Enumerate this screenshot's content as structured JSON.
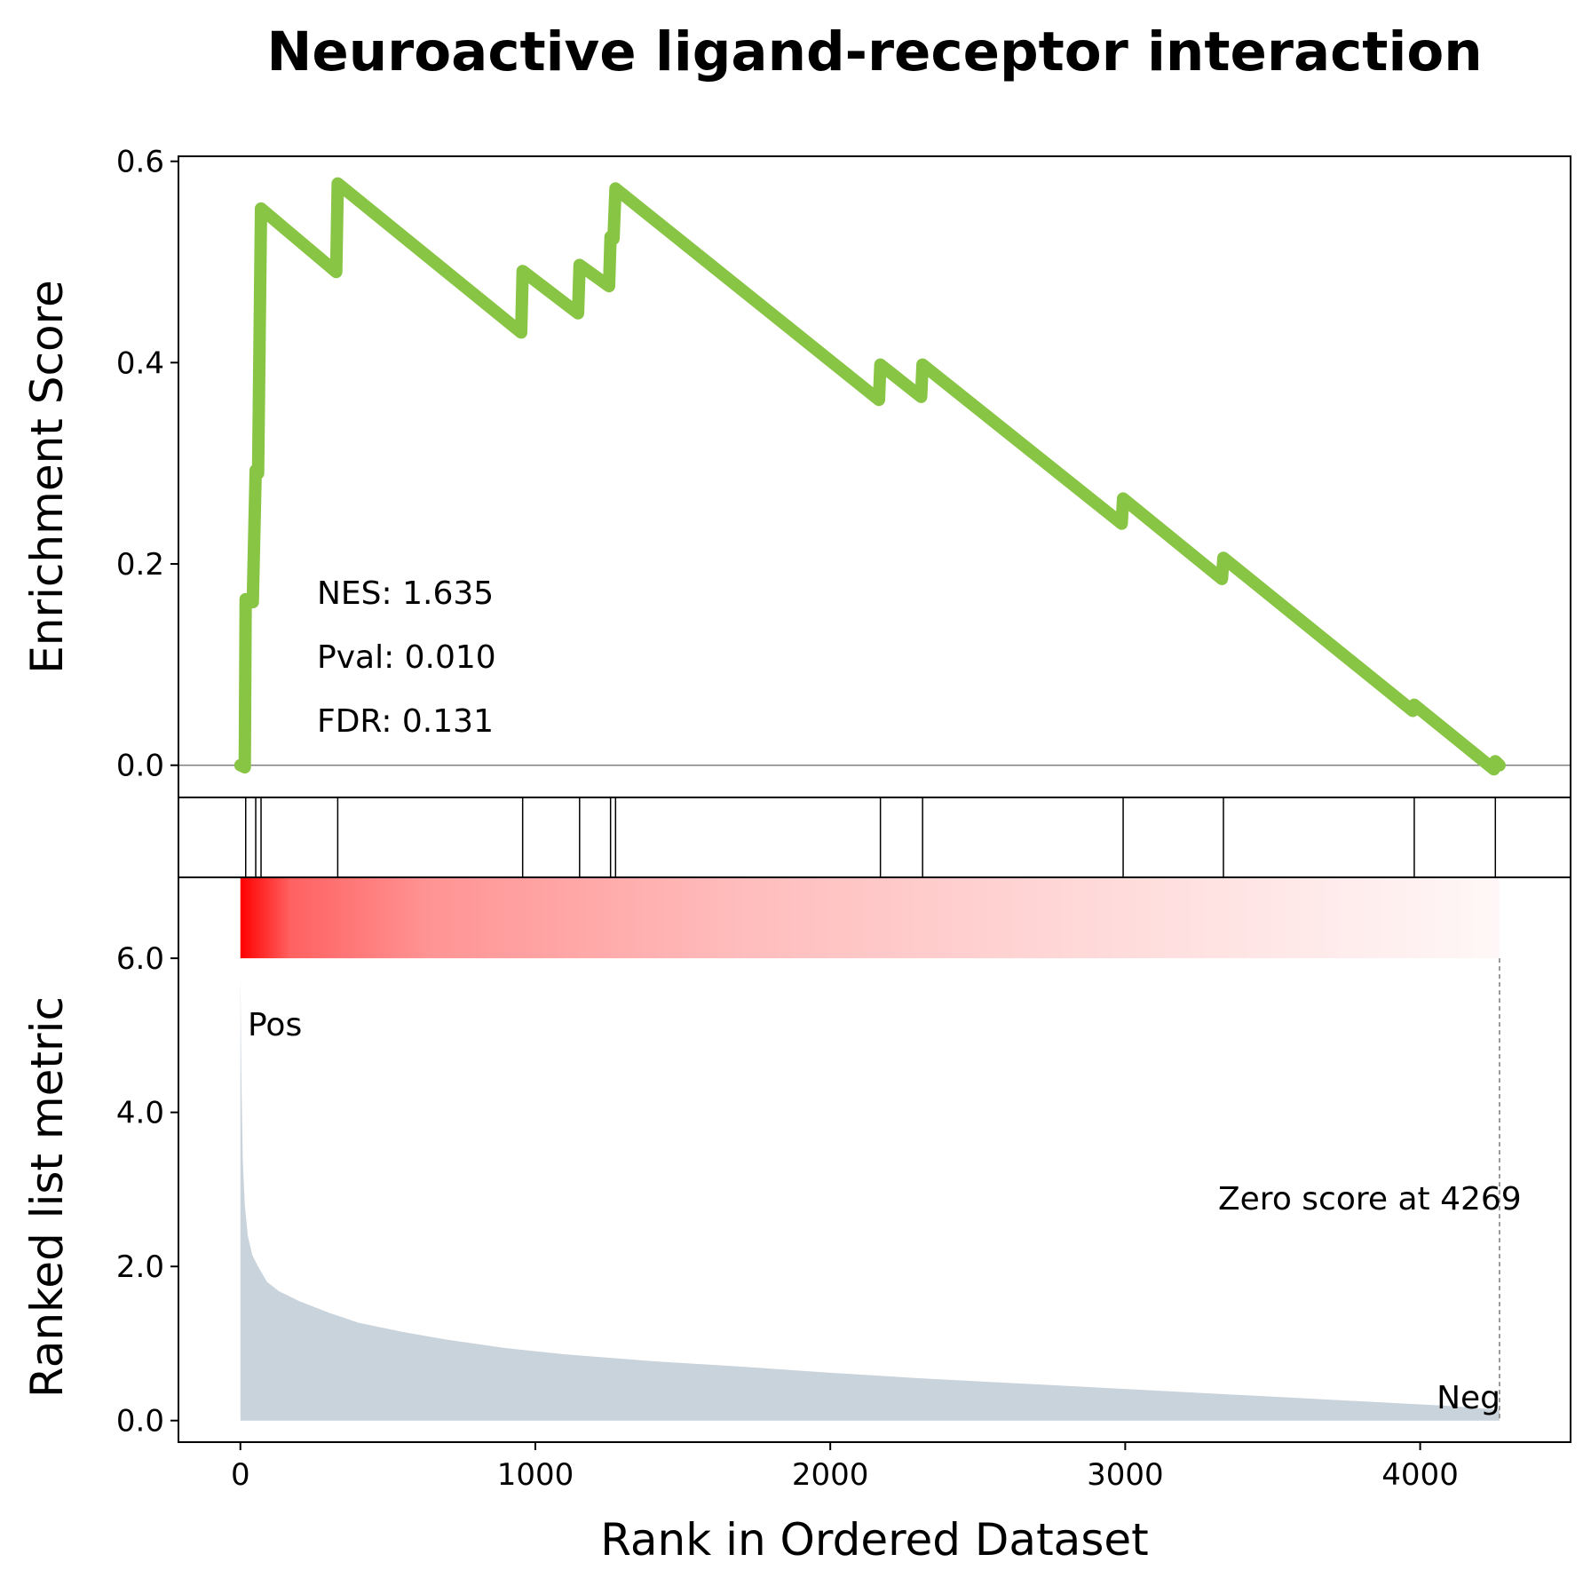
{
  "chart_data": {
    "type": "line",
    "title": "Neuroactive ligand-receptor interaction",
    "xlabel": "Rank in Ordered Dataset",
    "xlim": [
      -210,
      4510
    ],
    "x_ticks": [
      0,
      1000,
      2000,
      3000,
      4000
    ],
    "x_tick_labels": [
      "0",
      "1000",
      "2000",
      "3000",
      "4000"
    ],
    "enrichment": {
      "ylabel": "Enrichment Score",
      "ylim": [
        -0.032,
        0.605
      ],
      "y_ticks": [
        0.0,
        0.2,
        0.4,
        0.6
      ],
      "y_tick_labels": [
        "0.0",
        "0.2",
        "0.4",
        "0.6"
      ],
      "zero_line": true,
      "color": "#88C544",
      "points": [
        [
          0,
          0.0
        ],
        [
          15,
          -0.002
        ],
        [
          18,
          0.165
        ],
        [
          42,
          0.162
        ],
        [
          52,
          0.293
        ],
        [
          60,
          0.29
        ],
        [
          70,
          0.553
        ],
        [
          325,
          0.49
        ],
        [
          330,
          0.578
        ],
        [
          952,
          0.43
        ],
        [
          957,
          0.491
        ],
        [
          1145,
          0.449
        ],
        [
          1150,
          0.497
        ],
        [
          1250,
          0.476
        ],
        [
          1255,
          0.525
        ],
        [
          1265,
          0.523
        ],
        [
          1272,
          0.573
        ],
        [
          2165,
          0.363
        ],
        [
          2170,
          0.398
        ],
        [
          2308,
          0.366
        ],
        [
          2313,
          0.398
        ],
        [
          2988,
          0.24
        ],
        [
          2993,
          0.265
        ],
        [
          3328,
          0.185
        ],
        [
          3333,
          0.206
        ],
        [
          3975,
          0.054
        ],
        [
          3980,
          0.06
        ],
        [
          4250,
          -0.004
        ],
        [
          4255,
          0.004
        ],
        [
          4269,
          0.0
        ]
      ]
    },
    "stats": {
      "nes": "NES: 1.635",
      "pval": "Pval: 0.010",
      "fdr": "FDR: 0.131"
    },
    "hits": [
      18,
      52,
      70,
      330,
      957,
      1150,
      1255,
      1272,
      2170,
      2313,
      2993,
      3333,
      3980,
      4255
    ],
    "ranked_metric": {
      "ylabel": "Ranked list metric",
      "ylim": [
        -0.28,
        7.05
      ],
      "y_ticks": [
        0.0,
        2.0,
        4.0,
        6.0
      ],
      "y_tick_labels": [
        "0.0",
        "2.0",
        "4.0",
        "6.0"
      ],
      "fill_color": "#C9D3DC",
      "heatmap_color": "#FF0000",
      "curve": [
        [
          0,
          5.8
        ],
        [
          3,
          4.5
        ],
        [
          8,
          3.4
        ],
        [
          15,
          2.8
        ],
        [
          25,
          2.4
        ],
        [
          40,
          2.15
        ],
        [
          60,
          2.0
        ],
        [
          90,
          1.8
        ],
        [
          130,
          1.68
        ],
        [
          200,
          1.55
        ],
        [
          300,
          1.4
        ],
        [
          400,
          1.27
        ],
        [
          550,
          1.15
        ],
        [
          700,
          1.05
        ],
        [
          900,
          0.94
        ],
        [
          1100,
          0.86
        ],
        [
          1400,
          0.77
        ],
        [
          1700,
          0.7
        ],
        [
          2000,
          0.62
        ],
        [
          2300,
          0.55
        ],
        [
          2600,
          0.49
        ],
        [
          2900,
          0.43
        ],
        [
          3200,
          0.37
        ],
        [
          3500,
          0.31
        ],
        [
          3800,
          0.25
        ],
        [
          4100,
          0.19
        ],
        [
          4269,
          0.14
        ]
      ],
      "pos_label": "Pos",
      "neg_label": "Neg",
      "pos_color": "#FF0000",
      "neg_color": "#0000FF",
      "zero_score_rank": 4269,
      "zero_score_label": "Zero score at 4269"
    }
  }
}
